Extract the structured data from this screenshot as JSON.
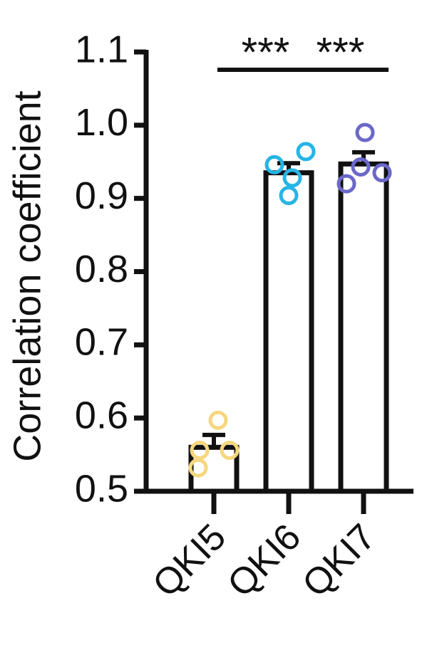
{
  "chart_data": {
    "type": "bar",
    "y_label": "Correlation coefficient",
    "categories": [
      "QKI5",
      "QKI6",
      "QKI7"
    ],
    "values": [
      0.56,
      0.935,
      0.947
    ],
    "errors": [
      0.017,
      0.013,
      0.016
    ],
    "colors": [
      "#f5d77e",
      "#25b5e6",
      "#6b68c9"
    ],
    "points": [
      [
        0.597,
        0.556,
        0.556,
        0.532
      ],
      [
        0.946,
        0.964,
        0.928,
        0.904
      ],
      [
        0.99,
        0.92,
        0.935,
        0.943
      ]
    ],
    "ylim": [
      0.5,
      1.1
    ],
    "yticks": [
      0.5,
      0.6,
      0.7,
      0.8,
      0.9,
      {
        "value": 1.0,
        "label": "1.0"
      },
      1.1
    ],
    "annotations": [
      "***",
      "***"
    ]
  }
}
